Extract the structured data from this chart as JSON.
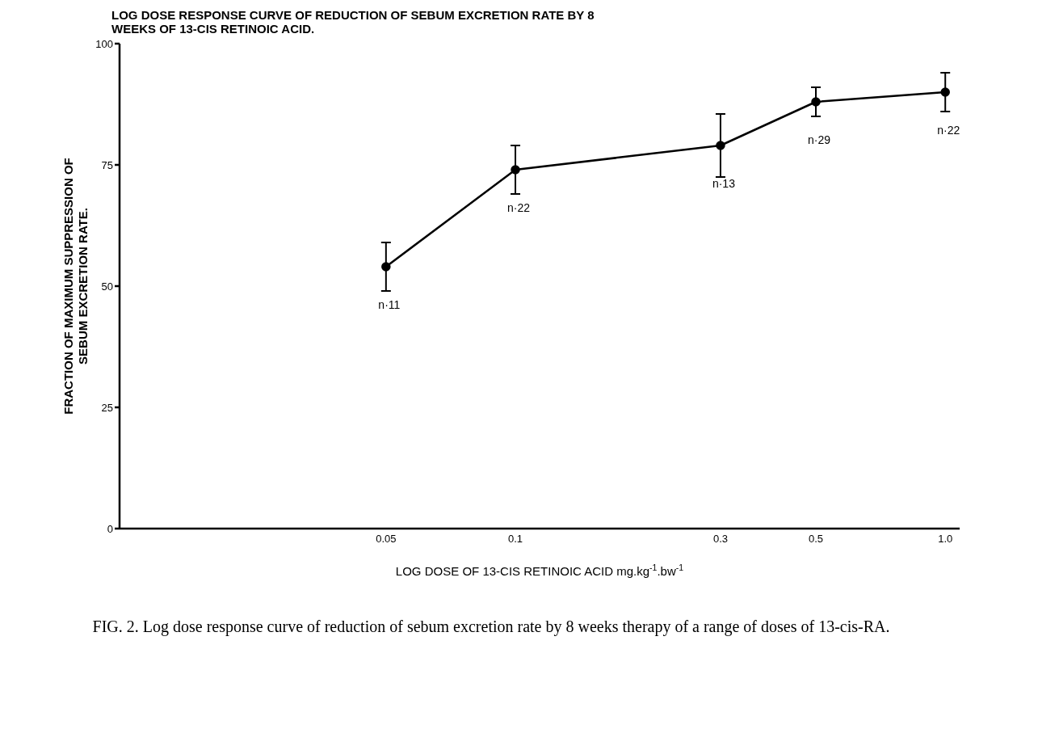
{
  "chart_data": {
    "type": "line",
    "title": "LOG DOSE RESPONSE CURVE OF REDUCTION OF SEBUM EXCRETION RATE BY 8 WEEKS OF 13-CIS RETINOIC ACID.",
    "xlabel": "LOG DOSE OF 13-CIS RETINOIC ACID mg.kg$^{-1}$.bw$^{-1}$",
    "ylabel": "FRACTION OF MAXIMUM SUPPRESSION OF\nSEBUM EXCRETION RATE.",
    "x": [
      0.05,
      0.1,
      0.3,
      0.5,
      1.0
    ],
    "series": [
      {
        "color": "#000000",
        "values": [
          54,
          74,
          79,
          88,
          90
        ],
        "errors": [
          5,
          5,
          6.5,
          3,
          4
        ]
      }
    ],
    "xlim": [
      0.012,
      1.08
    ],
    "xticks": [
      0.05,
      0.1,
      0.3,
      0.5,
      {
        "value": 1,
        "label": "1.0"
      }
    ],
    "ylim": [
      0,
      100
    ],
    "yticks": [
      0,
      25,
      50,
      75,
      100
    ],
    "log": "x",
    "grid": false,
    "legend": false,
    "marker": "circle",
    "line_style": "solid",
    "annotations": [
      {
        "text": "n·11",
        "x": 0.05,
        "y": 54
      },
      {
        "text": "n·22",
        "x": 0.1,
        "y": 74
      },
      {
        "text": "n·13",
        "x": 0.3,
        "y": 79
      },
      {
        "text": "n·29",
        "x": 0.5,
        "y": 88
      },
      {
        "text": "n·22",
        "x": 1.0,
        "y": 90
      },
      "FIG. 2. Log dose response curve of reduction of sebum excretion rate by 8 weeks therapy of a range of doses of 13-cis-RA."
    ]
  }
}
